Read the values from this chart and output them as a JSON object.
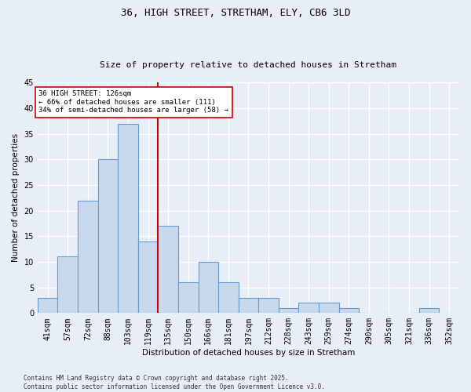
{
  "title_line1": "36, HIGH STREET, STRETHAM, ELY, CB6 3LD",
  "title_line2": "Size of property relative to detached houses in Stretham",
  "xlabel": "Distribution of detached houses by size in Stretham",
  "ylabel": "Number of detached properties",
  "categories": [
    "41sqm",
    "57sqm",
    "72sqm",
    "88sqm",
    "103sqm",
    "119sqm",
    "135sqm",
    "150sqm",
    "166sqm",
    "181sqm",
    "197sqm",
    "212sqm",
    "228sqm",
    "243sqm",
    "259sqm",
    "274sqm",
    "290sqm",
    "305sqm",
    "321sqm",
    "336sqm",
    "352sqm"
  ],
  "values": [
    3,
    11,
    22,
    30,
    37,
    14,
    17,
    6,
    10,
    6,
    3,
    3,
    1,
    2,
    2,
    1,
    0,
    0,
    0,
    1,
    0
  ],
  "bar_color": "#c8d9ee",
  "bar_edge_color": "#6699cc",
  "vline_x_index": 5.5,
  "vline_color": "#cc0000",
  "annotation_text": "36 HIGH STREET: 126sqm\n← 66% of detached houses are smaller (111)\n34% of semi-detached houses are larger (58) →",
  "annotation_box_color": "#ffffff",
  "annotation_box_edge": "#cc0000",
  "bg_color": "#e8eef8",
  "grid_color": "#ffffff",
  "ylim": [
    0,
    45
  ],
  "yticks": [
    0,
    5,
    10,
    15,
    20,
    25,
    30,
    35,
    40,
    45
  ],
  "footer_line1": "Contains HM Land Registry data © Crown copyright and database right 2025.",
  "footer_line2": "Contains public sector information licensed under the Open Government Licence v3.0."
}
